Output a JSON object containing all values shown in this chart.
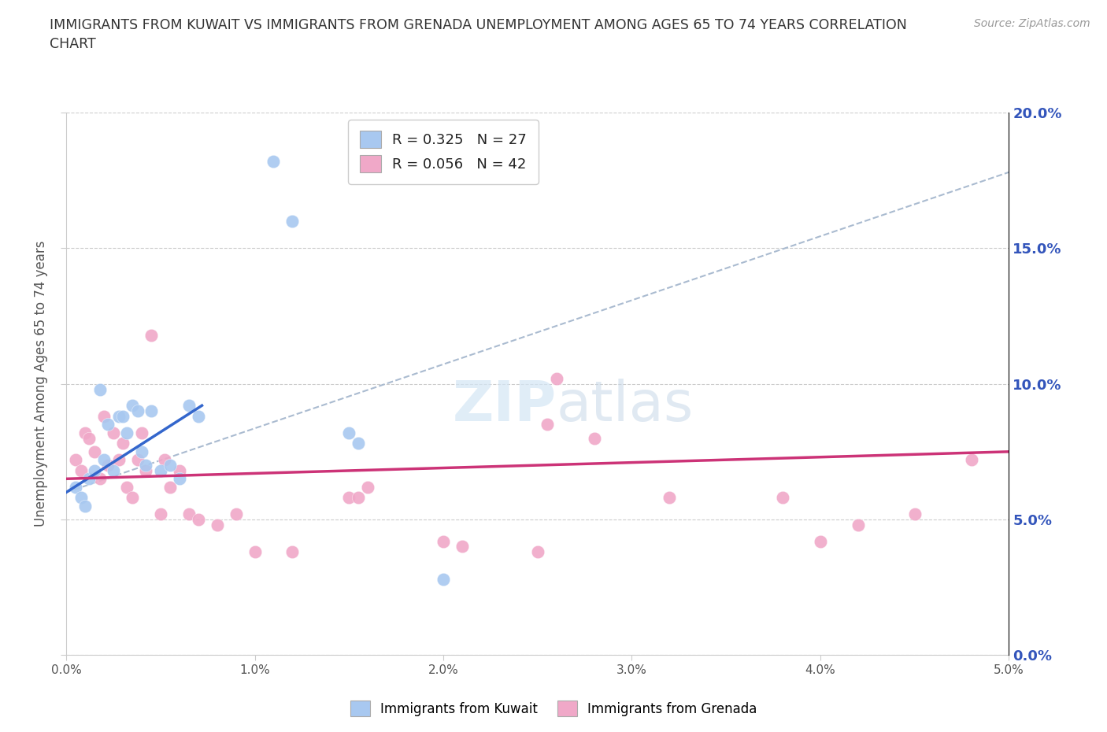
{
  "title": "IMMIGRANTS FROM KUWAIT VS IMMIGRANTS FROM GRENADA UNEMPLOYMENT AMONG AGES 65 TO 74 YEARS CORRELATION\nCHART",
  "source": "Source: ZipAtlas.com",
  "ylabel": "Unemployment Among Ages 65 to 74 years",
  "xlim": [
    0.0,
    5.0
  ],
  "ylim": [
    0.0,
    20.0
  ],
  "yticks": [
    0.0,
    5.0,
    10.0,
    15.0,
    20.0
  ],
  "xticks": [
    0.0,
    1.0,
    2.0,
    3.0,
    4.0,
    5.0
  ],
  "kuwait_R": 0.325,
  "kuwait_N": 27,
  "grenada_R": 0.056,
  "grenada_N": 42,
  "kuwait_color": "#a8c8f0",
  "grenada_color": "#f0a8c8",
  "kuwait_line_color": "#3366cc",
  "grenada_line_color": "#cc3377",
  "dash_color": "#aabbd0",
  "watermark_color": "#d4e6f5",
  "kuwait_scatter_x": [
    0.05,
    0.08,
    0.1,
    0.12,
    0.15,
    0.18,
    0.2,
    0.22,
    0.25,
    0.28,
    0.3,
    0.32,
    0.35,
    0.38,
    0.4,
    0.42,
    0.45,
    0.5,
    0.55,
    0.6,
    0.65,
    0.7,
    1.1,
    1.2,
    1.5,
    1.55,
    2.0
  ],
  "kuwait_scatter_y": [
    6.2,
    5.8,
    5.5,
    6.5,
    6.8,
    9.8,
    7.2,
    8.5,
    6.8,
    8.8,
    8.8,
    8.2,
    9.2,
    9.0,
    7.5,
    7.0,
    9.0,
    6.8,
    7.0,
    6.5,
    9.2,
    8.8,
    18.2,
    16.0,
    8.2,
    7.8,
    2.8
  ],
  "grenada_scatter_x": [
    0.05,
    0.08,
    0.1,
    0.12,
    0.15,
    0.18,
    0.2,
    0.22,
    0.25,
    0.28,
    0.3,
    0.32,
    0.35,
    0.38,
    0.4,
    0.42,
    0.45,
    0.5,
    0.52,
    0.55,
    0.6,
    0.65,
    0.7,
    0.8,
    0.9,
    1.0,
    1.2,
    1.5,
    1.55,
    1.6,
    2.0,
    2.1,
    2.5,
    2.55,
    2.6,
    2.8,
    3.2,
    3.8,
    4.0,
    4.2,
    4.5,
    4.8
  ],
  "grenada_scatter_y": [
    7.2,
    6.8,
    8.2,
    8.0,
    7.5,
    6.5,
    8.8,
    7.0,
    8.2,
    7.2,
    7.8,
    6.2,
    5.8,
    7.2,
    8.2,
    6.8,
    11.8,
    5.2,
    7.2,
    6.2,
    6.8,
    5.2,
    5.0,
    4.8,
    5.2,
    3.8,
    3.8,
    5.8,
    5.8,
    6.2,
    4.2,
    4.0,
    3.8,
    8.5,
    10.2,
    8.0,
    5.8,
    5.8,
    4.2,
    4.8,
    5.2,
    7.2
  ],
  "kuwait_trend_x0": 0.0,
  "kuwait_trend_y0": 6.0,
  "kuwait_trend_x1": 0.72,
  "kuwait_trend_y1": 9.2,
  "grenada_trend_x0": 0.0,
  "grenada_trend_y0": 6.5,
  "grenada_trend_x1": 5.0,
  "grenada_trend_y1": 7.5,
  "dash_x0": 0.0,
  "dash_y0": 6.0,
  "dash_x1": 5.0,
  "dash_y1": 17.8
}
